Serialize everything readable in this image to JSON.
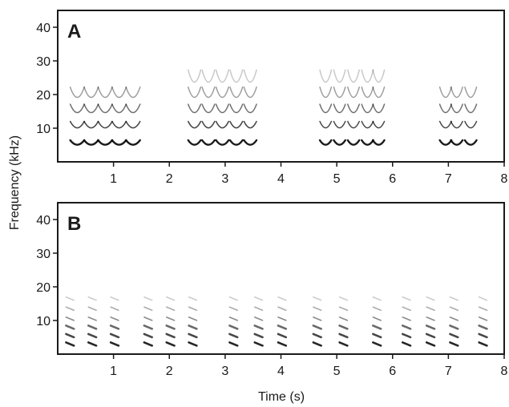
{
  "ylabel": "Frequency (kHz)",
  "xlabel": "Time (s)",
  "chart_data": [
    {
      "type": "heatmap",
      "panel": "A",
      "xlim": [
        0.0,
        8.0
      ],
      "ylim": [
        0,
        45
      ],
      "xticks": [
        1,
        2,
        3,
        4,
        5,
        6,
        7,
        8
      ],
      "yticks": [
        10,
        20,
        30,
        40
      ],
      "harmonics_khz": [
        5,
        10,
        14.5,
        19,
        23.5
      ],
      "bouts": [
        {
          "start": 0.2,
          "end": 1.6,
          "notes": [
            0.35,
            0.6,
            0.85,
            1.1,
            1.35
          ],
          "harmonics": 4
        },
        {
          "start": 2.3,
          "end": 3.55,
          "notes": [
            2.45,
            2.7,
            2.95,
            3.2,
            3.45
          ],
          "harmonics": 5
        },
        {
          "start": 4.65,
          "end": 5.8,
          "notes": [
            4.8,
            5.05,
            5.3,
            5.55,
            5.75
          ],
          "harmonics": 5
        },
        {
          "start": 6.85,
          "end": 7.55,
          "notes": [
            6.95,
            7.15,
            7.4
          ],
          "harmonics": 4
        }
      ]
    },
    {
      "type": "heatmap",
      "panel": "B",
      "xlim": [
        0.0,
        8.0
      ],
      "ylim": [
        0,
        45
      ],
      "xticks": [
        1,
        2,
        3,
        4,
        5,
        6,
        7,
        8
      ],
      "yticks": [
        10,
        20,
        30,
        40
      ],
      "harmonics_khz": [
        3,
        5.5,
        8,
        10.5,
        13.5,
        16.5
      ],
      "pulse_times": [
        0.22,
        0.62,
        1.02,
        1.62,
        2.02,
        2.42,
        3.15,
        3.6,
        4.02,
        4.65,
        5.12,
        5.72,
        6.25,
        6.68,
        7.1,
        7.62
      ]
    }
  ]
}
